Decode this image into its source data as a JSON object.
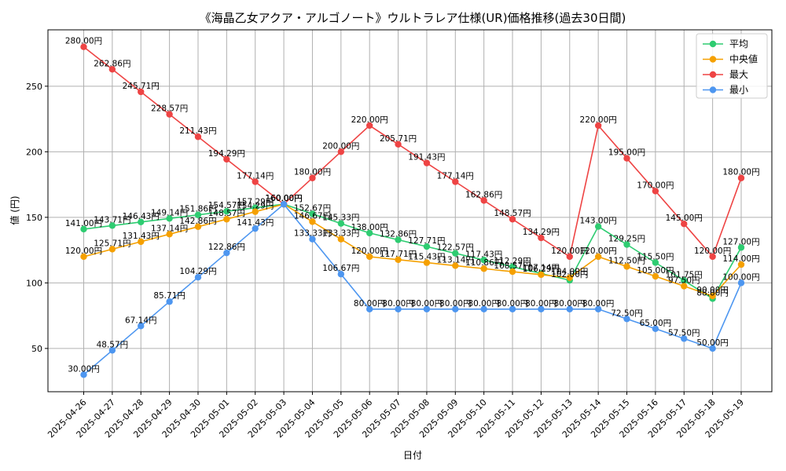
{
  "chart_data": {
    "type": "line",
    "title": "《海晶乙女アクア・アルゴノート》ウルトラレア仕様(UR)価格推移(過去30日間)",
    "xlabel": "日付",
    "ylabel": "値 (円)",
    "value_suffix": "円",
    "ylim": [
      17,
      293
    ],
    "yticks": [
      50,
      100,
      150,
      200,
      250
    ],
    "grid": true,
    "legend_position": "top-right",
    "x": [
      "2025-04-26",
      "2025-04-27",
      "2025-04-28",
      "2025-04-29",
      "2025-04-30",
      "2025-05-01",
      "2025-05-02",
      "2025-05-03",
      "2025-05-04",
      "2025-05-05",
      "2025-05-06",
      "2025-05-07",
      "2025-05-08",
      "2025-05-09",
      "2025-05-10",
      "2025-05-11",
      "2025-05-12",
      "2025-05-13",
      "2025-05-14",
      "2025-05-15",
      "2025-05-16",
      "2025-05-17",
      "2025-05-18",
      "2025-05-19"
    ],
    "series": [
      {
        "name": "平均",
        "color": "#2ecc71",
        "values": [
          141.0,
          143.71,
          146.43,
          149.14,
          151.86,
          154.57,
          157.29,
          160.0,
          152.67,
          145.33,
          138.0,
          132.86,
          127.71,
          122.57,
          117.43,
          112.29,
          107.14,
          102.0,
          143.0,
          129.25,
          115.5,
          101.75,
          88.0,
          127.0
        ]
      },
      {
        "name": "中央値",
        "color": "#f5a000",
        "values": [
          120.0,
          125.71,
          131.43,
          137.14,
          142.86,
          148.57,
          154.29,
          160.0,
          146.67,
          133.33,
          120.0,
          117.71,
          115.43,
          113.14,
          110.86,
          108.57,
          106.29,
          104.0,
          120.0,
          112.5,
          105.0,
          97.5,
          90.0,
          114.0
        ]
      },
      {
        "name": "最大",
        "color": "#ee4444",
        "values": [
          280.0,
          262.86,
          245.71,
          228.57,
          211.43,
          194.29,
          177.14,
          160.0,
          180.0,
          200.0,
          220.0,
          205.71,
          191.43,
          177.14,
          162.86,
          148.57,
          134.29,
          120.0,
          220.0,
          195.0,
          170.0,
          145.0,
          120.0,
          180.0
        ]
      },
      {
        "name": "最小",
        "color": "#4d96f0",
        "values": [
          30.0,
          48.57,
          67.14,
          85.71,
          104.29,
          122.86,
          141.43,
          160.0,
          133.33,
          106.67,
          80.0,
          80.0,
          80.0,
          80.0,
          80.0,
          80.0,
          80.0,
          80.0,
          80.0,
          72.5,
          65.0,
          57.5,
          50.0,
          100.0
        ]
      }
    ]
  }
}
